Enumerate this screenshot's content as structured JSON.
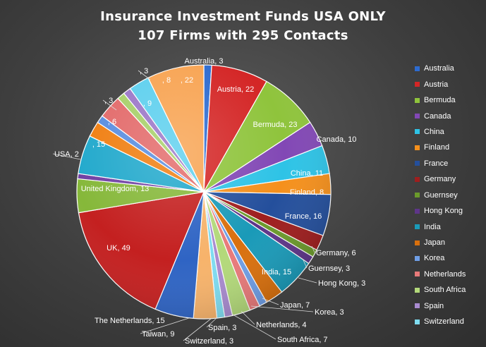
{
  "chart_data": {
    "type": "pie",
    "title": [
      "Insurance  Investment  Funds  USA  ONLY",
      "107  Firms  with  295  Contacts"
    ],
    "legend_position": "right",
    "slices": [
      {
        "label": "Australia",
        "value": 3,
        "color": "#2d6bd0",
        "data_label": "Australia, 3"
      },
      {
        "label": "Austria",
        "value": 22,
        "color": "#d42626",
        "data_label": "Austria, 22"
      },
      {
        "label": "Bermuda",
        "value": 23,
        "color": "#8fc43c",
        "data_label": "Bermuda, 23"
      },
      {
        "label": "Canada",
        "value": 10,
        "color": "#8248b5",
        "data_label": "Canada, 10"
      },
      {
        "label": "China",
        "value": 11,
        "color": "#2ec3e6",
        "data_label": "China, 11"
      },
      {
        "label": "Finland",
        "value": 8,
        "color": "#f5901c",
        "data_label": "Finland, 8"
      },
      {
        "label": "France",
        "value": 16,
        "color": "#244f9c",
        "data_label": "France, 16"
      },
      {
        "label": "Germany",
        "value": 6,
        "color": "#9e1e1e",
        "data_label": "Germany, 6"
      },
      {
        "label": "Guernsey",
        "value": 3,
        "color": "#6b9a2b",
        "data_label": "Guernsey, 3"
      },
      {
        "label": "Hong Kong",
        "value": 3,
        "color": "#5e3589",
        "data_label": "Hong Kong, 3"
      },
      {
        "label": "India",
        "value": 15,
        "color": "#1a9ab8",
        "data_label": "India, 15"
      },
      {
        "label": "Japan",
        "value": 7,
        "color": "#d9700d",
        "data_label": "Japan, 7"
      },
      {
        "label": "Korea",
        "value": 3,
        "color": "#6f9ee6",
        "data_label": "Korea, 3"
      },
      {
        "label": "Netherlands",
        "value": 4,
        "color": "#e87a7a",
        "data_label": "Netherlands, 4"
      },
      {
        "label": "South Africa",
        "value": 7,
        "color": "#b3d97a",
        "data_label": "South Africa, 7"
      },
      {
        "label": "Spain",
        "value": 3,
        "color": "#a98bd0",
        "data_label": "Spain, 3"
      },
      {
        "label": "Switzerland",
        "value": 3,
        "color": "#7fdcf0",
        "data_label": "Switzerland, 3"
      },
      {
        "label": "Taiwan",
        "value": 9,
        "color": "#f7b36b",
        "data_label": "Taiwan, 9"
      },
      {
        "label": "The Netherlands",
        "value": 15,
        "color": "#2f64c4",
        "data_label": "The Netherlands, 15"
      },
      {
        "label": "UK",
        "value": 49,
        "color": "#c42020",
        "data_label": "UK, 49"
      },
      {
        "label": "United Kingdom",
        "value": 13,
        "color": "#86b83a",
        "data_label": "United Kingdom, 13"
      },
      {
        "label": "USA",
        "value": 2,
        "color": "#6f3fa3",
        "data_label": "USA, 2"
      },
      {
        "label": "",
        "value": 15,
        "color": "#22a9cc",
        "data_label": ", 15"
      },
      {
        "label": "",
        "value": 6,
        "color": "#f07f12",
        "data_label": ", 6"
      },
      {
        "label": "",
        "value": 3,
        "color": "#5a8ee0",
        "data_label": ", 3"
      },
      {
        "label": "",
        "value": 9,
        "color": "#e36b6b",
        "data_label": ", 9"
      },
      {
        "label": "",
        "value": 3,
        "color": "#a8d06a",
        "data_label": ", 3"
      },
      {
        "label": "",
        "value": 3,
        "color": "#9c78c8",
        "data_label": ""
      },
      {
        "label": "",
        "value": 8,
        "color": "#5fd0ee",
        "data_label": ", 8"
      },
      {
        "label": "",
        "value": 22,
        "color": "#f8a453",
        "data_label": ", 22"
      }
    ],
    "legend": [
      "Australia",
      "Austria",
      "Bermuda",
      "Canada",
      "China",
      "Finland",
      "France",
      "Germany",
      "Guernsey",
      "Hong Kong",
      "India",
      "Japan",
      "Korea",
      "Netherlands",
      "South Africa",
      "Spain",
      "Switzerland"
    ]
  }
}
